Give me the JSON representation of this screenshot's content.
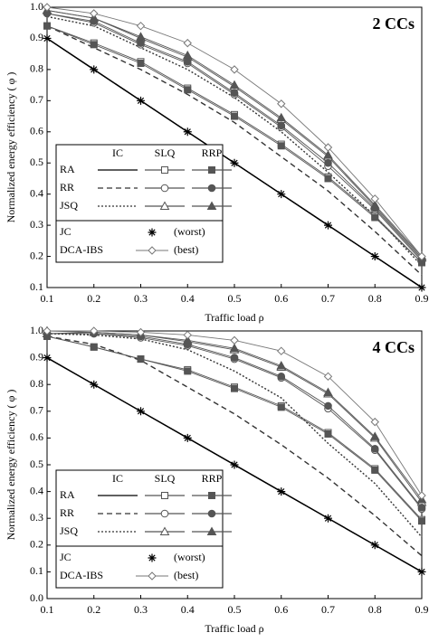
{
  "chart_data": [
    {
      "type": "line",
      "panel_label": "2 CCs",
      "x_label": "Traffic load ρ",
      "y_label": "Normalized energy efficiency ( φ )",
      "x": [
        0.1,
        0.2,
        0.3,
        0.4,
        0.5,
        0.6,
        0.7,
        0.8,
        0.9
      ],
      "xlim": [
        0.1,
        0.9
      ],
      "xticks": [
        0.1,
        0.2,
        0.3,
        0.4,
        0.5,
        0.6,
        0.7,
        0.8,
        0.9
      ],
      "ylim": [
        0.1,
        1
      ],
      "yticks": [
        0.1,
        0.2,
        0.3,
        0.4,
        0.5,
        0.6,
        0.7,
        0.8,
        0.9,
        {
          "value": 1,
          "label": "1.0"
        }
      ],
      "series": [
        {
          "name": "RA",
          "scheme": "IC",
          "color": "#000000",
          "dash": "solid",
          "marker": "none",
          "filled": false,
          "values": [
            0.9,
            0.8,
            0.7,
            0.6,
            0.5,
            0.4,
            0.3,
            0.2,
            0.1
          ]
        },
        {
          "name": "RR",
          "scheme": "IC",
          "color": "#333333",
          "dash": "dashed",
          "marker": "none",
          "filled": false,
          "values": [
            0.94,
            0.87,
            0.8,
            0.72,
            0.63,
            0.52,
            0.41,
            0.28,
            0.14
          ]
        },
        {
          "name": "JSQ",
          "scheme": "IC",
          "color": "#333333",
          "dash": "dotted",
          "marker": "none",
          "filled": false,
          "values": [
            0.97,
            0.94,
            0.87,
            0.8,
            0.71,
            0.6,
            0.47,
            0.33,
            0.17
          ]
        },
        {
          "name": "RA",
          "scheme": "SLQ",
          "color": "#555555",
          "dash": "solid",
          "marker": "square",
          "filled": false,
          "values": [
            0.94,
            0.885,
            0.825,
            0.74,
            0.655,
            0.56,
            0.455,
            0.33,
            0.18
          ]
        },
        {
          "name": "RR",
          "scheme": "SLQ",
          "color": "#555555",
          "dash": "solid",
          "marker": "circle",
          "filled": false,
          "values": [
            0.98,
            0.95,
            0.88,
            0.82,
            0.72,
            0.615,
            0.49,
            0.35,
            0.185
          ]
        },
        {
          "name": "JSQ",
          "scheme": "SLQ",
          "color": "#555555",
          "dash": "solid",
          "marker": "triangle",
          "filled": false,
          "values": [
            0.99,
            0.965,
            0.9,
            0.84,
            0.745,
            0.64,
            0.52,
            0.36,
            0.195
          ]
        },
        {
          "name": "RA",
          "scheme": "RRP",
          "color": "#555555",
          "dash": "solid",
          "marker": "square",
          "filled": true,
          "values": [
            0.94,
            0.88,
            0.82,
            0.735,
            0.65,
            0.555,
            0.45,
            0.325,
            0.18
          ]
        },
        {
          "name": "RR",
          "scheme": "RRP",
          "color": "#555555",
          "dash": "solid",
          "marker": "circle",
          "filled": true,
          "values": [
            0.98,
            0.955,
            0.885,
            0.825,
            0.725,
            0.62,
            0.5,
            0.355,
            0.19
          ]
        },
        {
          "name": "JSQ",
          "scheme": "RRP",
          "color": "#555555",
          "dash": "solid",
          "marker": "triangle",
          "filled": true,
          "values": [
            0.99,
            0.965,
            0.905,
            0.845,
            0.75,
            0.645,
            0.525,
            0.365,
            0.2
          ]
        },
        {
          "name": "JC",
          "note": "(worst)",
          "color": "#000000",
          "dash": "solid",
          "marker": "star",
          "filled": false,
          "values": [
            0.9,
            0.8,
            0.7,
            0.6,
            0.5,
            0.4,
            0.3,
            0.2,
            0.1
          ]
        },
        {
          "name": "DCA-IBS",
          "note": "(best)",
          "color": "#777777",
          "dash": "solid",
          "marker": "diamond",
          "filled": false,
          "values": [
            1,
            0.98,
            0.94,
            0.885,
            0.8,
            0.69,
            0.55,
            0.385,
            0.2
          ]
        }
      ]
    },
    {
      "type": "line",
      "panel_label": "4 CCs",
      "x_label": "Traffic load ρ",
      "y_label": "Normalized energy efficiency ( φ )",
      "x": [
        0.1,
        0.2,
        0.3,
        0.4,
        0.5,
        0.6,
        0.7,
        0.8,
        0.9
      ],
      "xlim": [
        0.1,
        0.9
      ],
      "xticks": [
        0.1,
        0.2,
        0.3,
        0.4,
        0.5,
        0.6,
        0.7,
        0.8,
        0.9
      ],
      "ylim": [
        0,
        1
      ],
      "yticks": [
        {
          "value": 0,
          "label": "0.0"
        },
        0.1,
        0.2,
        0.3,
        0.4,
        0.5,
        0.6,
        0.7,
        0.8,
        0.9,
        {
          "value": 1,
          "label": "1.0"
        }
      ],
      "series": [
        {
          "name": "RA",
          "scheme": "IC",
          "color": "#000000",
          "dash": "solid",
          "marker": "none",
          "filled": false,
          "values": [
            0.9,
            0.8,
            0.7,
            0.6,
            0.5,
            0.4,
            0.3,
            0.2,
            0.1
          ]
        },
        {
          "name": "RR",
          "scheme": "IC",
          "color": "#333333",
          "dash": "dashed",
          "marker": "none",
          "filled": false,
          "values": [
            0.98,
            0.95,
            0.89,
            0.79,
            0.69,
            0.575,
            0.45,
            0.31,
            0.16
          ]
        },
        {
          "name": "JSQ",
          "scheme": "IC",
          "color": "#333333",
          "dash": "dotted",
          "marker": "none",
          "filled": false,
          "values": [
            0.99,
            0.985,
            0.97,
            0.93,
            0.85,
            0.75,
            0.58,
            0.43,
            0.23
          ]
        },
        {
          "name": "RA",
          "scheme": "SLQ",
          "color": "#555555",
          "dash": "solid",
          "marker": "square",
          "filled": false,
          "values": [
            0.98,
            0.94,
            0.895,
            0.855,
            0.79,
            0.72,
            0.62,
            0.485,
            0.295
          ]
        },
        {
          "name": "RR",
          "scheme": "SLQ",
          "color": "#555555",
          "dash": "solid",
          "marker": "circle",
          "filled": false,
          "values": [
            0.99,
            0.99,
            0.975,
            0.945,
            0.895,
            0.825,
            0.71,
            0.555,
            0.335
          ]
        },
        {
          "name": "JSQ",
          "scheme": "SLQ",
          "color": "#555555",
          "dash": "solid",
          "marker": "triangle",
          "filled": false,
          "values": [
            0.99,
            0.995,
            0.985,
            0.96,
            0.93,
            0.865,
            0.765,
            0.6,
            0.36
          ]
        },
        {
          "name": "RA",
          "scheme": "RRP",
          "color": "#555555",
          "dash": "solid",
          "marker": "square",
          "filled": true,
          "values": [
            0.98,
            0.94,
            0.895,
            0.85,
            0.785,
            0.715,
            0.615,
            0.48,
            0.29
          ]
        },
        {
          "name": "RR",
          "scheme": "RRP",
          "color": "#555555",
          "dash": "solid",
          "marker": "circle",
          "filled": true,
          "values": [
            0.99,
            0.99,
            0.98,
            0.95,
            0.9,
            0.83,
            0.72,
            0.56,
            0.34
          ]
        },
        {
          "name": "JSQ",
          "scheme": "RRP",
          "color": "#555555",
          "dash": "solid",
          "marker": "triangle",
          "filled": true,
          "values": [
            1,
            0.995,
            0.985,
            0.965,
            0.935,
            0.87,
            0.77,
            0.605,
            0.37
          ]
        },
        {
          "name": "JC",
          "note": "(worst)",
          "color": "#000000",
          "dash": "solid",
          "marker": "star",
          "filled": false,
          "values": [
            0.9,
            0.8,
            0.7,
            0.6,
            0.5,
            0.4,
            0.3,
            0.2,
            0.1
          ]
        },
        {
          "name": "DCA-IBS",
          "note": "(best)",
          "color": "#777777",
          "dash": "solid",
          "marker": "diamond",
          "filled": false,
          "values": [
            1,
            1,
            0.995,
            0.985,
            0.965,
            0.925,
            0.83,
            0.66,
            0.385
          ]
        }
      ]
    }
  ]
}
